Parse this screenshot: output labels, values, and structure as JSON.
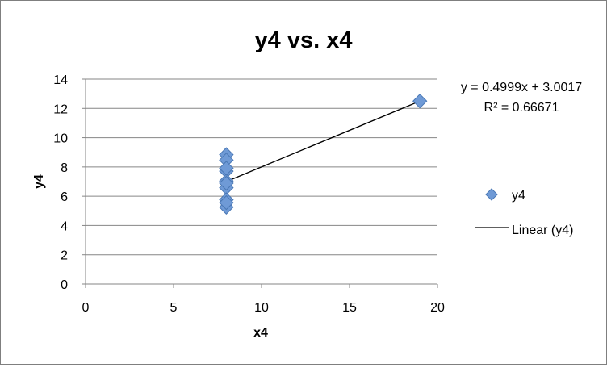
{
  "chart_data": {
    "type": "scatter",
    "title": "y4 vs. x4",
    "xlabel": "x4",
    "ylabel": "y4",
    "xlim": [
      0,
      20
    ],
    "ylim": [
      0,
      14
    ],
    "x_ticks": [
      0,
      5,
      10,
      15,
      20
    ],
    "y_ticks": [
      0,
      2,
      4,
      6,
      8,
      10,
      12,
      14
    ],
    "grid": "horizontal",
    "legend_position": "right",
    "series": [
      {
        "name": "y4",
        "marker": "diamond",
        "color": "#4f81bd",
        "x": [
          8,
          8,
          8,
          8,
          8,
          8,
          8,
          19,
          8,
          8,
          8
        ],
        "y": [
          6.58,
          5.76,
          7.71,
          8.84,
          8.47,
          7.04,
          5.25,
          12.5,
          5.56,
          7.91,
          6.89
        ]
      }
    ],
    "trendline": {
      "name": "Linear (y4)",
      "slope": 0.4999,
      "intercept": 3.0017,
      "x_range": [
        8,
        19
      ],
      "color": "#000000",
      "equation_text": "y = 0.4999x + 3.0017",
      "r2_text": "R² = 0.66671"
    }
  }
}
